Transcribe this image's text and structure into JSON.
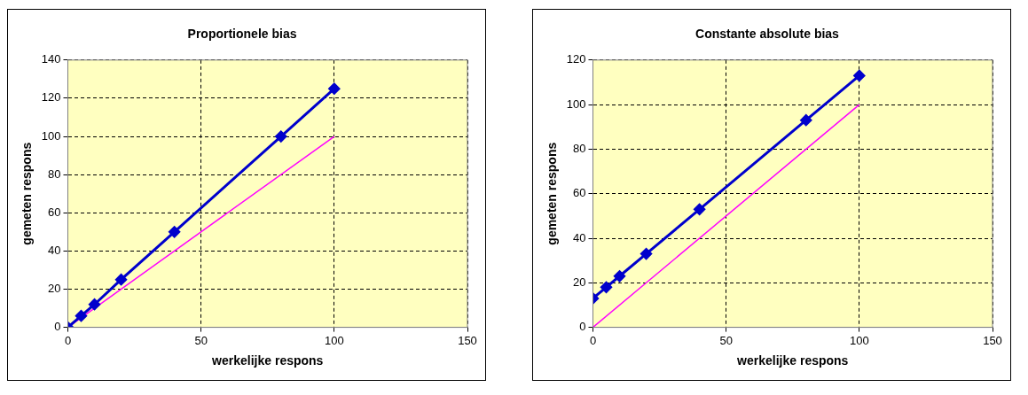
{
  "chart_data": [
    {
      "type": "line",
      "title": "Proportionele bias",
      "xlabel": "werkelijke respons",
      "ylabel": "gemeten respons",
      "xlim": [
        0,
        150
      ],
      "xticks": [
        0,
        50,
        100,
        150
      ],
      "ylim": [
        0,
        140
      ],
      "yticks": [
        0,
        20,
        40,
        60,
        80,
        100,
        120,
        140
      ],
      "grid": true,
      "legend": false,
      "series": [
        {
          "color": "#0000cc",
          "marker": "diamond",
          "x": [
            0,
            5,
            10,
            20,
            40,
            80,
            100
          ],
          "values": [
            0,
            6,
            12,
            25,
            50,
            100,
            125
          ]
        },
        {
          "color": "#ff00ff",
          "marker": "none",
          "x": [
            0,
            100
          ],
          "values": [
            0,
            100
          ]
        }
      ]
    },
    {
      "type": "line",
      "title": "Constante absolute bias",
      "xlabel": "werkelijke respons",
      "ylabel": "gemeten respons",
      "xlim": [
        0,
        150
      ],
      "xticks": [
        0,
        50,
        100,
        150
      ],
      "ylim": [
        0,
        120
      ],
      "yticks": [
        0,
        20,
        40,
        60,
        80,
        100,
        120
      ],
      "grid": true,
      "legend": false,
      "series": [
        {
          "color": "#0000cc",
          "marker": "diamond",
          "x": [
            0,
            5,
            10,
            20,
            40,
            80,
            100
          ],
          "values": [
            13,
            18,
            23,
            33,
            53,
            93,
            113
          ]
        },
        {
          "color": "#ff00ff",
          "marker": "none",
          "x": [
            0,
            100
          ],
          "values": [
            0,
            100
          ]
        }
      ]
    }
  ]
}
